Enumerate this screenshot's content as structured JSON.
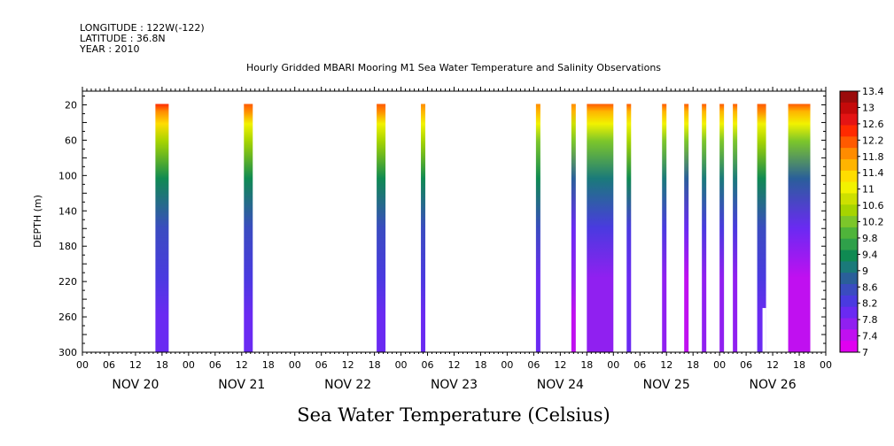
{
  "header": {
    "longitude": "LONGITUDE : 122W(-122)",
    "latitude": "LATITUDE : 36.8N",
    "year": "YEAR : 2010"
  },
  "chart_data": {
    "type": "heatmap",
    "title": "Hourly Gridded MBARI Mooring M1 Sea Water Temperature and Salinity Observations",
    "xlabel": "",
    "ylabel": "DEPTH (m)",
    "bottom_label": "Sea Water Temperature (Celsius)",
    "x_units": "hours since Nov 20 2010 00:00",
    "xlim": [
      0,
      168
    ],
    "ylim": [
      300,
      0
    ],
    "y_ticks": [
      20,
      60,
      100,
      140,
      180,
      220,
      260,
      300
    ],
    "x_hour_ticks": [
      "00",
      "06",
      "12",
      "18",
      "00",
      "06",
      "12",
      "18",
      "00",
      "06",
      "12",
      "18",
      "00",
      "06",
      "12",
      "18",
      "00",
      "06",
      "12",
      "18",
      "00",
      "06",
      "12",
      "18",
      "00",
      "06",
      "12",
      "18",
      "00"
    ],
    "day_labels": [
      "NOV 20",
      "NOV 21",
      "NOV 22",
      "NOV 23",
      "NOV 24",
      "NOV 25",
      "NOV 26"
    ],
    "colorbar_labels": [
      "13.4",
      "13",
      "12.6",
      "12.2",
      "11.8",
      "11.4",
      "11",
      "10.6",
      "10.2",
      "9.8",
      "9.4",
      "9",
      "8.6",
      "8.2",
      "7.8",
      "7.4",
      "7"
    ],
    "colorbar_colors": [
      "#9b0b0b",
      "#c40a0a",
      "#e41414",
      "#ff2a00",
      "#ff5a00",
      "#ff8c00",
      "#ffb400",
      "#ffdd00",
      "#f2f200",
      "#cde000",
      "#a6d400",
      "#7cc62a",
      "#4fb43a",
      "#2fa04a",
      "#0f8a52",
      "#1a7a7a",
      "#2a5f9a",
      "#3a4cc0",
      "#4a3ae0",
      "#6a2af2",
      "#9020f0",
      "#c010f0",
      "#e000f0"
    ],
    "series": [
      {
        "start_hr": 16.5,
        "end_hr": 19.5,
        "surface_temp": 12.4,
        "bottom_temp": 8.0
      },
      {
        "start_hr": 36.5,
        "end_hr": 38.5,
        "surface_temp": 12.2,
        "bottom_temp": 8.0
      },
      {
        "start_hr": 66.5,
        "end_hr": 68.5,
        "surface_temp": 12.2,
        "bottom_temp": 8.0
      },
      {
        "start_hr": 76.5,
        "end_hr": 77.5,
        "surface_temp": 12.0,
        "bottom_temp": 8.0
      },
      {
        "start_hr": 102.5,
        "end_hr": 103.5,
        "surface_temp": 12.0,
        "bottom_temp": 7.9
      },
      {
        "start_hr": 110.5,
        "end_hr": 111.5,
        "surface_temp": 12.0,
        "bottom_temp": 7.4
      },
      {
        "start_hr": 114.0,
        "end_hr": 120.0,
        "surface_temp": 12.2,
        "bottom_temp": 7.6
      },
      {
        "start_hr": 123.0,
        "end_hr": 124.0,
        "surface_temp": 12.2,
        "bottom_temp": 7.8
      },
      {
        "start_hr": 131.0,
        "end_hr": 132.0,
        "surface_temp": 12.2,
        "bottom_temp": 7.6
      },
      {
        "start_hr": 136.0,
        "end_hr": 137.0,
        "surface_temp": 12.2,
        "bottom_temp": 7.2
      },
      {
        "start_hr": 140.0,
        "end_hr": 141.0,
        "surface_temp": 12.2,
        "bottom_temp": 7.6
      },
      {
        "start_hr": 144.0,
        "end_hr": 145.0,
        "surface_temp": 12.2,
        "bottom_temp": 7.6
      },
      {
        "start_hr": 147.0,
        "end_hr": 148.0,
        "surface_temp": 12.2,
        "bottom_temp": 7.6
      },
      {
        "start_hr": 152.5,
        "end_hr": 154.5,
        "surface_temp": 12.2,
        "bottom_temp": 8.0,
        "gap_below_depth": 250
      },
      {
        "start_hr": 159.5,
        "end_hr": 164.5,
        "surface_temp": 12.2,
        "bottom_temp": 7.2
      }
    ]
  }
}
